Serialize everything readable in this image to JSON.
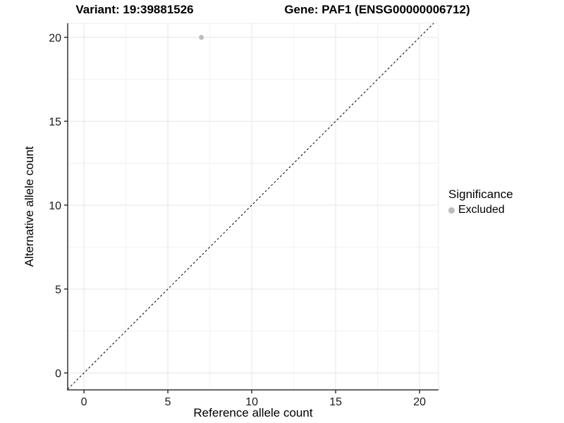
{
  "figure": {
    "title_left": "Variant: 19:39881526",
    "title_right": "Gene: PAF1 (ENSG00000006712)"
  },
  "chart_data": {
    "type": "scatter",
    "title": "Variant: 19:39881526   Gene: PAF1 (ENSG00000006712)",
    "xlabel": "Reference allele count",
    "ylabel": "Alternative allele count",
    "xlim": [
      -0.97,
      21.13
    ],
    "ylim": [
      -1.01,
      20.84
    ],
    "x_ticks": [
      0,
      5,
      10,
      15,
      20
    ],
    "y_ticks": [
      0,
      5,
      10,
      15,
      20
    ],
    "x_minor_ticks": [
      2.5,
      7.5,
      12.5,
      17.5
    ],
    "y_minor_ticks": [
      2.5,
      7.5,
      12.5,
      17.5
    ],
    "grid": true,
    "series": [
      {
        "name": "Excluded",
        "color": "#bcbcbc",
        "marker": "circle",
        "points": [
          {
            "x": 7,
            "y": 20
          }
        ]
      }
    ],
    "reference_line": {
      "kind": "identity",
      "equation": "y = x",
      "style": "dashed",
      "color": "#000000"
    },
    "legend": {
      "title": "Significance",
      "position": "right",
      "items": [
        {
          "label": "Excluded",
          "color": "#bcbcbc",
          "marker": "circle"
        }
      ]
    }
  },
  "style": {
    "axis_line_color": "#333333",
    "tick_color": "#333333",
    "tick_label_color": "#1a1a1a",
    "grid_major_color": "#e5e5e5",
    "grid_minor_color": "#f2f2f2",
    "panel_edge_color": "#ededed",
    "background": "#ffffff"
  }
}
